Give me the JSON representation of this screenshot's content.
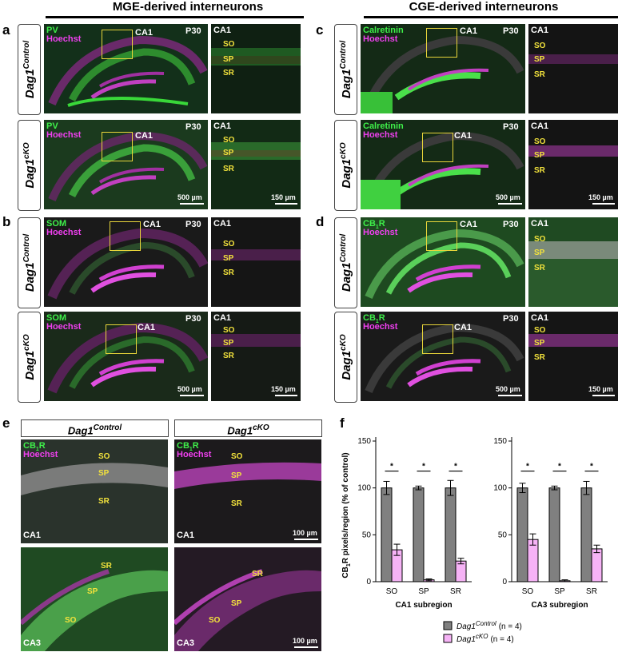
{
  "headers": {
    "mge": "MGE-derived interneurons",
    "cge": "CGE-derived interneurons"
  },
  "panel_letters": {
    "a": "a",
    "b": "b",
    "c": "c",
    "d": "d",
    "e": "e",
    "f": "f"
  },
  "genotype": {
    "base": "Dag1",
    "control": "Control",
    "cko": "cKO"
  },
  "markers": {
    "pv": "PV",
    "som": "SOM",
    "calretinin": "Calretinin",
    "cb1r_base": "CB",
    "cb1r_sub": "1",
    "cb1r_end": "R",
    "hoechst": "Hoechst"
  },
  "micro_labels": {
    "age": "P30",
    "ca1": "CA1",
    "ca3": "CA3",
    "so": "SO",
    "sp": "SP",
    "sr": "SR"
  },
  "scale_bars": {
    "overview": "500 µm",
    "inset": "150 µm",
    "panel_e": "100 µm"
  },
  "colors": {
    "green_channel": "#3ff04a",
    "magenta_channel": "#f040f0",
    "roi_box": "#e8d53a",
    "control_bar": "#808080",
    "cko_bar": "#f6b3f6"
  },
  "chart_data": [
    {
      "type": "bar",
      "subtitle": "CA1 subregion",
      "ylabel": "CB1R pixels/region (% of control)",
      "categories": [
        "SO",
        "SP",
        "SR"
      ],
      "ylim": [
        0,
        150
      ],
      "yticks": [
        0,
        50,
        100,
        150
      ],
      "series": [
        {
          "name": "Dag1Control (n = 4)",
          "values": [
            100,
            100,
            100
          ],
          "errors": [
            7,
            2,
            8
          ]
        },
        {
          "name": "Dag1cKO (n = 4)",
          "values": [
            34,
            2,
            22
          ],
          "errors": [
            6,
            1,
            3
          ]
        }
      ],
      "significance": [
        "*",
        "*",
        "*"
      ]
    },
    {
      "type": "bar",
      "subtitle": "CA3 subregion",
      "ylabel": "",
      "categories": [
        "SO",
        "SP",
        "SR"
      ],
      "ylim": [
        0,
        150
      ],
      "yticks": [
        0,
        50,
        100,
        150
      ],
      "series": [
        {
          "name": "Dag1Control (n = 4)",
          "values": [
            100,
            100,
            100
          ],
          "errors": [
            5,
            2,
            7
          ]
        },
        {
          "name": "Dag1cKO (n = 4)",
          "values": [
            45,
            1,
            35
          ],
          "errors": [
            6,
            1,
            4
          ]
        }
      ],
      "significance": [
        "*",
        "*",
        "*"
      ]
    }
  ],
  "legend": {
    "control_n": "(n = 4)",
    "cko_n": "(n = 4)"
  }
}
